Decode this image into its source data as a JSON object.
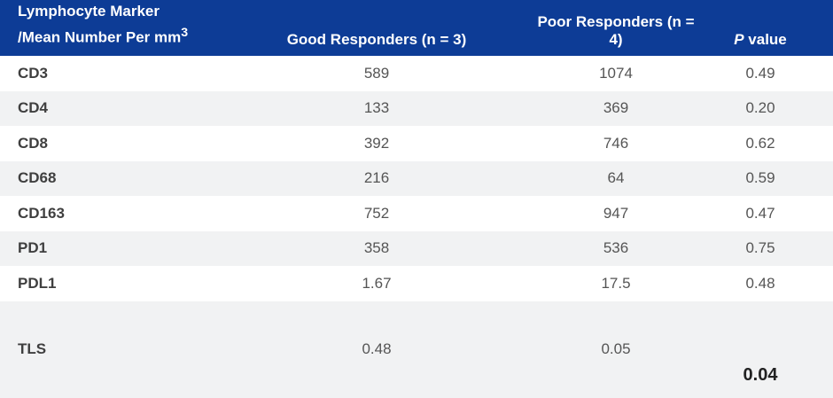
{
  "header": {
    "col1_line1": "Lymphocyte Marker",
    "col1_line2": "/Mean Number Per mm",
    "col1_sup": "3",
    "col2": "Good Responders (n = 3)",
    "col3": "Poor Responders (n = 4)",
    "col4_italic": "P",
    "col4_rest": " value"
  },
  "rows": [
    {
      "marker": "CD3",
      "good": "589",
      "poor": "1074",
      "p": "0.49"
    },
    {
      "marker": "CD4",
      "good": "133",
      "poor": "369",
      "p": "0.20"
    },
    {
      "marker": "CD8",
      "good": "392",
      "poor": "746",
      "p": "0.62"
    },
    {
      "marker": "CD68",
      "good": "216",
      "poor": "64",
      "p": "0.59"
    },
    {
      "marker": "CD163",
      "good": "752",
      "poor": "947",
      "p": "0.47"
    },
    {
      "marker": "PD1",
      "good": "358",
      "poor": "536",
      "p": "0.75"
    },
    {
      "marker": "PDL1",
      "good": "1.67",
      "poor": "17.5",
      "p": "0.48"
    },
    {
      "marker": "TLS",
      "good": "0.48",
      "poor": "0.05",
      "p": "0.04"
    }
  ],
  "colors": {
    "header_bg": "#0d3c96",
    "stripe_bg": "#f1f2f3"
  }
}
